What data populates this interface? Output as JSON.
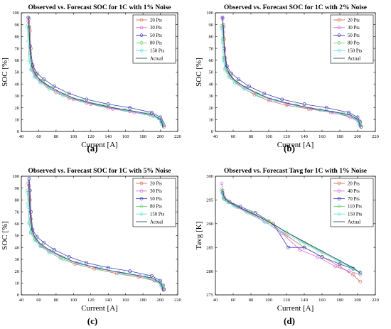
{
  "panels": [
    {
      "title": "Observed vs. Forecast SOC for 1C with 1% Noise",
      "caption": "(a)",
      "xlabel": "Current [A]",
      "ylabel": "SOC [%]",
      "xticks": [
        "40",
        "60",
        "80",
        "100",
        "120",
        "140",
        "160",
        "180",
        "200",
        "220"
      ],
      "yticks": [
        "0",
        "10",
        "20",
        "30",
        "40",
        "50",
        "60",
        "70",
        "80",
        "90",
        "100"
      ],
      "legend": [
        "20 Pts",
        "30 Pts",
        "50 Pts",
        "80 Pts",
        "150 Pts",
        "Actual"
      ]
    },
    {
      "title": "Observed vs. Forecast SOC for 1C with 2% Noise",
      "caption": "(b)",
      "xlabel": "Current [A]",
      "ylabel": "SOC [%]",
      "xticks": [
        "40",
        "60",
        "80",
        "100",
        "120",
        "140",
        "160",
        "180",
        "200",
        "220"
      ],
      "yticks": [
        "0",
        "10",
        "20",
        "30",
        "40",
        "50",
        "60",
        "70",
        "80",
        "90",
        "100"
      ],
      "legend": [
        "20 Pts",
        "30 Pts",
        "50 Pts",
        "80 Pts",
        "150 Pts",
        "Actual"
      ]
    },
    {
      "title": "Observed vs. Forecast SOC for 1C with 5% Noise",
      "caption": "(c)",
      "xlabel": "Current [A]",
      "ylabel": "SOC [%]",
      "xticks": [
        "40",
        "60",
        "80",
        "100",
        "120",
        "140",
        "160",
        "180",
        "200",
        "220"
      ],
      "yticks": [
        "0",
        "10",
        "20",
        "30",
        "40",
        "50",
        "60",
        "70",
        "80",
        "90",
        "100"
      ],
      "legend": [
        "20 Pts",
        "30 Pts",
        "50 Pts",
        "80 Pts",
        "150 Pts",
        "Actual"
      ]
    },
    {
      "title": "Observed vs. Forecast Tavg for 1C with 1% Noise",
      "caption": "(d)",
      "xlabel": "Current [A]",
      "ylabel": "Tavg [K]",
      "xticks": [
        "40",
        "60",
        "80",
        "100",
        "120",
        "140",
        "160",
        "180",
        "200",
        "220"
      ],
      "yticks": [
        "275",
        "280",
        "285",
        "290",
        "295",
        "300"
      ],
      "legend": [
        "20 Pts",
        "40 Pts",
        "70 Pts",
        "110 Pts",
        "150 Pts",
        "Actual"
      ]
    }
  ],
  "series_colors": [
    "#d4735a",
    "#d36ee0",
    "#3d3db8",
    "#6fd36b",
    "#66e0e0",
    "#2f4f6f"
  ],
  "chart_data": [
    {
      "type": "line",
      "title": "Observed vs. Forecast SOC for 1C with 1% Noise",
      "xlabel": "Current [A]",
      "ylabel": "SOC [%]",
      "xlim": [
        40,
        220
      ],
      "ylim": [
        0,
        100
      ],
      "legend_position": "top-right",
      "series": [
        {
          "name": "20 Pts",
          "x": [
            49,
            50,
            51,
            53,
            57,
            62,
            70,
            80,
            95,
            115,
            140,
            165,
            188,
            201,
            203,
            204
          ],
          "y": [
            95,
            85,
            70,
            55,
            48,
            43,
            38,
            33,
            28,
            24,
            20,
            17,
            14,
            10,
            7,
            4
          ]
        },
        {
          "name": "30 Pts",
          "x": [
            48,
            49,
            50,
            52,
            56,
            62,
            72,
            85,
            100,
            120,
            145,
            170,
            192,
            201,
            203
          ],
          "y": [
            93,
            82,
            66,
            52,
            46,
            42,
            37,
            32,
            27,
            23,
            19,
            16,
            13,
            9,
            6
          ]
        },
        {
          "name": "50 Pts",
          "x": [
            48,
            49,
            50,
            53,
            58,
            66,
            78,
            95,
            115,
            140,
            165,
            190,
            200,
            202,
            204
          ],
          "y": [
            96,
            88,
            72,
            56,
            49,
            44,
            38,
            32,
            27,
            23,
            20,
            16,
            12,
            8,
            5
          ]
        },
        {
          "name": "80 Pts",
          "x": [
            48,
            49,
            50,
            52,
            57,
            65,
            75,
            90,
            110,
            135,
            160,
            185,
            199,
            201,
            203
          ],
          "y": [
            90,
            80,
            64,
            53,
            47,
            42,
            37,
            31,
            26,
            22,
            18,
            15,
            11,
            8,
            6
          ]
        },
        {
          "name": "150 Pts",
          "x": [
            47,
            48,
            49,
            51,
            55,
            62,
            72,
            88,
            108,
            130,
            158,
            182,
            198,
            201,
            202
          ],
          "y": [
            88,
            76,
            60,
            52,
            46,
            41,
            36,
            30,
            26,
            22,
            18,
            15,
            11,
            8,
            6
          ]
        },
        {
          "name": "Actual",
          "x": [
            48,
            49,
            50,
            52,
            56,
            62,
            72,
            85,
            100,
            120,
            145,
            170,
            192,
            200,
            202,
            203
          ],
          "y": [
            97,
            85,
            68,
            55,
            48,
            43,
            38,
            33,
            28,
            24,
            20,
            17,
            14,
            10,
            7,
            3
          ]
        }
      ]
    },
    {
      "type": "line",
      "title": "Observed vs. Forecast SOC for 1C with 2% Noise",
      "xlabel": "Current [A]",
      "ylabel": "SOC [%]",
      "xlim": [
        40,
        220
      ],
      "ylim": [
        0,
        100
      ],
      "legend_position": "top-right",
      "series": [
        {
          "name": "20 Pts",
          "x": [
            49,
            50,
            51,
            54,
            58,
            64,
            72,
            84,
            100,
            120,
            145,
            170,
            190,
            202,
            204
          ],
          "y": [
            90,
            78,
            62,
            50,
            45,
            41,
            36,
            31,
            26,
            22,
            19,
            16,
            13,
            9,
            4
          ]
        },
        {
          "name": "30 Pts",
          "x": [
            48,
            49,
            50,
            52,
            57,
            63,
            73,
            86,
            102,
            122,
            148,
            172,
            192,
            201,
            203
          ],
          "y": [
            95,
            84,
            68,
            54,
            47,
            42,
            37,
            32,
            27,
            23,
            19,
            16,
            12,
            8,
            5
          ]
        },
        {
          "name": "50 Pts",
          "x": [
            48,
            49,
            50,
            53,
            58,
            66,
            78,
            95,
            115,
            140,
            165,
            190,
            200,
            203,
            204
          ],
          "y": [
            96,
            88,
            70,
            55,
            49,
            44,
            38,
            32,
            27,
            23,
            20,
            16,
            12,
            8,
            4
          ]
        },
        {
          "name": "80 Pts",
          "x": [
            47,
            48,
            49,
            51,
            56,
            63,
            74,
            89,
            108,
            132,
            158,
            184,
            198,
            201,
            203
          ],
          "y": [
            89,
            78,
            62,
            53,
            47,
            42,
            37,
            31,
            26,
            22,
            18,
            15,
            11,
            8,
            6
          ]
        },
        {
          "name": "150 Pts",
          "x": [
            47,
            48,
            49,
            51,
            55,
            62,
            72,
            88,
            108,
            130,
            158,
            182,
            198,
            201,
            202
          ],
          "y": [
            87,
            75,
            60,
            52,
            46,
            41,
            36,
            30,
            26,
            22,
            18,
            15,
            11,
            8,
            6
          ]
        },
        {
          "name": "Actual",
          "x": [
            48,
            49,
            50,
            52,
            56,
            62,
            72,
            85,
            100,
            120,
            145,
            170,
            192,
            200,
            202,
            203
          ],
          "y": [
            97,
            85,
            68,
            55,
            48,
            43,
            38,
            33,
            28,
            24,
            20,
            17,
            14,
            10,
            7,
            3
          ]
        }
      ]
    },
    {
      "type": "line",
      "title": "Observed vs. Forecast SOC for 1C with 5% Noise",
      "xlabel": "Current [A]",
      "ylabel": "SOC [%]",
      "xlim": [
        40,
        220
      ],
      "ylim": [
        0,
        100
      ],
      "legend_position": "top-right",
      "series": [
        {
          "name": "20 Pts",
          "x": [
            49,
            50,
            51,
            53,
            57,
            63,
            72,
            85,
            102,
            124,
            150,
            175,
            193,
            202,
            204
          ],
          "y": [
            92,
            80,
            64,
            52,
            46,
            41,
            36,
            31,
            26,
            22,
            18,
            15,
            12,
            8,
            4
          ]
        },
        {
          "name": "30 Pts",
          "x": [
            48,
            49,
            50,
            52,
            56,
            62,
            72,
            86,
            104,
            126,
            152,
            176,
            194,
            201,
            203
          ],
          "y": [
            94,
            83,
            67,
            54,
            47,
            42,
            37,
            32,
            27,
            23,
            19,
            16,
            12,
            8,
            5
          ]
        },
        {
          "name": "50 Pts",
          "x": [
            49,
            50,
            51,
            53,
            58,
            66,
            78,
            95,
            115,
            140,
            165,
            190,
            200,
            203,
            204
          ],
          "y": [
            98,
            88,
            70,
            55,
            49,
            44,
            38,
            32,
            27,
            23,
            20,
            16,
            12,
            8,
            5
          ]
        },
        {
          "name": "80 Pts",
          "x": [
            47,
            48,
            49,
            51,
            56,
            63,
            74,
            89,
            108,
            132,
            158,
            184,
            198,
            201,
            203
          ],
          "y": [
            88,
            77,
            61,
            53,
            47,
            42,
            37,
            31,
            26,
            22,
            18,
            15,
            11,
            8,
            6
          ]
        },
        {
          "name": "150 Pts",
          "x": [
            47,
            48,
            49,
            51,
            55,
            62,
            72,
            88,
            108,
            130,
            158,
            182,
            198,
            201,
            202
          ],
          "y": [
            86,
            74,
            60,
            52,
            46,
            41,
            36,
            30,
            26,
            22,
            18,
            15,
            11,
            8,
            6
          ]
        },
        {
          "name": "Actual",
          "x": [
            48,
            49,
            50,
            52,
            56,
            62,
            72,
            85,
            100,
            120,
            145,
            170,
            192,
            200,
            202,
            203
          ],
          "y": [
            97,
            85,
            68,
            55,
            48,
            43,
            38,
            33,
            28,
            24,
            20,
            17,
            14,
            10,
            7,
            3
          ]
        }
      ]
    },
    {
      "type": "line",
      "title": "Observed vs. Forecast Tavg for 1C with 1% Noise",
      "xlabel": "Current [A]",
      "ylabel": "Tavg [K]",
      "xlim": [
        40,
        220
      ],
      "ylim": [
        275,
        300
      ],
      "legend_position": "top-right",
      "series": [
        {
          "name": "20 Pts",
          "x": [
            48,
            50,
            55,
            65,
            80,
            100,
            120,
            140,
            160,
            180,
            195,
            203
          ],
          "y": [
            297,
            295.5,
            294.5,
            293.5,
            292.2,
            290.4,
            287.5,
            285,
            283,
            281,
            279.2,
            277.8
          ]
        },
        {
          "name": "40 Pts",
          "x": [
            47,
            49,
            52,
            60,
            75,
            95,
            115,
            135,
            155,
            175,
            190,
            203
          ],
          "y": [
            298.5,
            296,
            295,
            294,
            292.5,
            290.5,
            288,
            284.5,
            283,
            281,
            280,
            279.3
          ]
        },
        {
          "name": "70 Pts",
          "x": [
            48,
            50,
            56,
            68,
            85,
            105,
            122,
            140,
            160,
            180,
            195,
            203
          ],
          "y": [
            296.5,
            295.2,
            294.6,
            293.6,
            292.3,
            290,
            285,
            285,
            283,
            281.5,
            280.5,
            279.7
          ]
        },
        {
          "name": "110 Pts",
          "x": [
            47,
            49,
            54,
            64,
            80,
            100,
            120,
            140,
            160,
            180,
            195,
            203
          ],
          "y": [
            297.2,
            295.6,
            294.8,
            293.7,
            292.4,
            290.6,
            288.2,
            286,
            284,
            282,
            280.6,
            279.6
          ]
        },
        {
          "name": "150 Pts",
          "x": [
            47,
            49,
            53,
            62,
            77,
            96,
            116,
            136,
            156,
            176,
            192,
            203
          ],
          "y": [
            296.8,
            295.4,
            294.6,
            293.6,
            292.2,
            290.3,
            288.2,
            286.2,
            284.3,
            282.4,
            280.8,
            279.8
          ]
        },
        {
          "name": "Actual",
          "x": [
            48,
            50,
            55,
            65,
            80,
            100,
            120,
            140,
            160,
            180,
            195,
            203
          ],
          "y": [
            297,
            295.5,
            294.6,
            293.6,
            292.3,
            290.4,
            288.2,
            286.2,
            284.2,
            282.2,
            280.7,
            279.6
          ]
        }
      ]
    }
  ]
}
